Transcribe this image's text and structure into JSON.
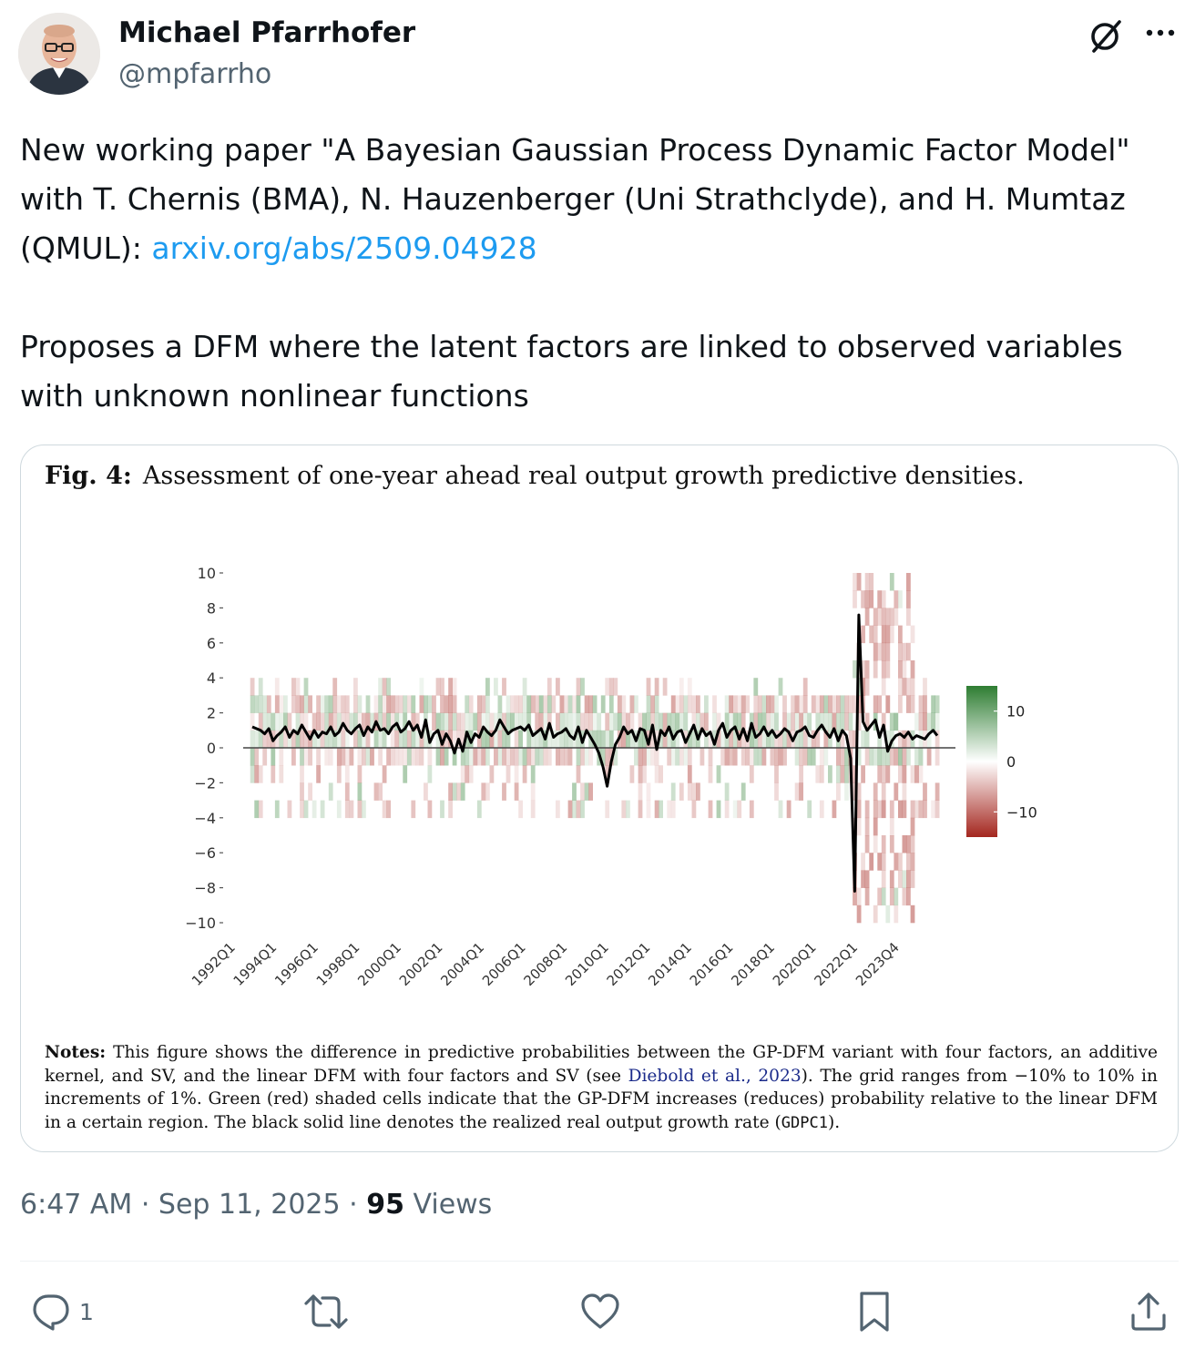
{
  "author": {
    "name": "Michael Pfarrhofer",
    "handle": "@mpfarrho",
    "avatar_icon": "profile-photo"
  },
  "header_icons": {
    "grok": "grok-icon",
    "more": "more-icon"
  },
  "tweet": {
    "line1": "New working paper \"A Bayesian Gaussian Process Dynamic Factor Model\" with T. Chernis (BMA), N. Hauzenberger (Uni Strathclyde), and H. Mumtaz (QMUL): ",
    "link": "arxiv.org/abs/2509.04928",
    "line2": "Proposes a DFM where the latent factors are linked to observed variables with unknown nonlinear functions"
  },
  "figure": {
    "label": "Fig. 4:",
    "title": "Assessment of one-year ahead real output growth predictive densities.",
    "notes_label": "Notes:",
    "notes_a": "This figure shows the difference in predictive probabilities between the GP-DFM variant with four factors, an additive kernel, and SV, and the linear DFM with four factors and SV (see ",
    "notes_cite": "Diebold et al., 2023",
    "notes_b": "). The grid ranges from −10% to 10% in increments of 1%. Green (red) shaded cells indicate that the GP-DFM increases (reduces) probability relative to the linear DFM in a certain region. The black solid line denotes the realized real output growth rate (",
    "notes_code": "GDPC1",
    "notes_c": ")."
  },
  "chart_data": {
    "type": "heatmap",
    "yticks": [
      "10",
      "8",
      "6",
      "4",
      "2",
      "0",
      "−2",
      "−4",
      "−6",
      "−8",
      "−10"
    ],
    "ylim": [
      -10,
      10
    ],
    "xticks": [
      "1992Q1",
      "1994Q1",
      "1996Q1",
      "1998Q1",
      "2000Q1",
      "2002Q1",
      "2004Q1",
      "2006Q1",
      "2008Q1",
      "2010Q1",
      "2012Q1",
      "2014Q1",
      "2016Q1",
      "2018Q1",
      "2020Q1",
      "2022Q1",
      "2023Q4"
    ],
    "colorbar_ticks": [
      "10",
      "0",
      "−10"
    ],
    "colorbar_range": [
      -15,
      15
    ],
    "colors": {
      "positive": "#2e7d32",
      "negative": "#a4261e",
      "line": "#000000"
    },
    "series": [
      {
        "values": [
          1.2,
          1.1,
          1.0,
          0.8,
          1.1,
          0.4,
          0.7,
          0.9,
          1.2,
          0.6,
          1.0,
          0.8,
          1.3,
          0.9,
          0.5,
          1.0,
          0.6,
          0.9,
          0.8,
          1.2,
          0.7,
          0.9,
          1.4,
          1.0,
          0.8,
          1.1,
          1.3,
          0.7,
          1.2,
          0.9,
          1.5,
          1.0,
          1.1,
          0.8,
          1.2,
          1.4,
          0.9,
          1.1,
          1.5,
          1.0,
          1.3,
          0.6,
          1.6,
          0.3,
          0.8,
          1.0,
          0.2,
          0.8,
          0.4,
          -0.3,
          0.5,
          -0.2,
          0.9,
          0.3,
          0.8,
          0.6,
          1.2,
          0.9,
          0.7,
          1.0,
          1.6,
          1.2,
          0.8,
          1.0,
          1.1,
          1.2,
          1.0,
          1.3,
          0.7,
          0.9,
          1.1,
          0.5,
          1.4,
          0.6,
          0.8,
          0.9,
          1.1,
          0.7,
          0.5,
          1.2,
          0.3,
          1.0,
          0.6,
          0.2,
          -0.3,
          -1.1,
          -2.2,
          -0.8,
          0.2,
          0.6,
          1.2,
          0.8,
          1.0,
          0.4,
          1.1,
          1.0,
          0.2,
          1.3,
          -0.1,
          1.0,
          0.7,
          1.2,
          0.5,
          0.9,
          1.0,
          0.3,
          0.8,
          1.3,
          0.5,
          1.1,
          0.7,
          0.9,
          0.2,
          1.0,
          1.4,
          0.6,
          1.0,
          1.2,
          0.5,
          1.1,
          0.4,
          1.4,
          0.6,
          0.8,
          1.2,
          0.7,
          1.0,
          0.6,
          0.8,
          1.1,
          0.9,
          0.4,
          0.9,
          1.0,
          1.2,
          0.7,
          0.6,
          1.0,
          1.3,
          0.9,
          0.6,
          1.1,
          0.4,
          1.0,
          0.7,
          -0.6,
          -8.2,
          7.6,
          1.5,
          1.0,
          1.3,
          1.6,
          0.6,
          1.3,
          -0.2,
          0.4,
          0.7,
          0.8,
          0.6,
          0.9,
          0.5,
          0.7,
          0.6,
          0.5,
          0.8,
          1.0,
          0.7
        ]
      }
    ],
    "grid": false
  },
  "stats": {
    "time": "6:47 AM · Sep 11, 2025 · ",
    "views_count": "95",
    "views_label": " Views",
    "replies": "1"
  },
  "action_icons": [
    "reply-icon",
    "retweet-icon",
    "like-icon",
    "bookmark-icon",
    "share-icon"
  ]
}
